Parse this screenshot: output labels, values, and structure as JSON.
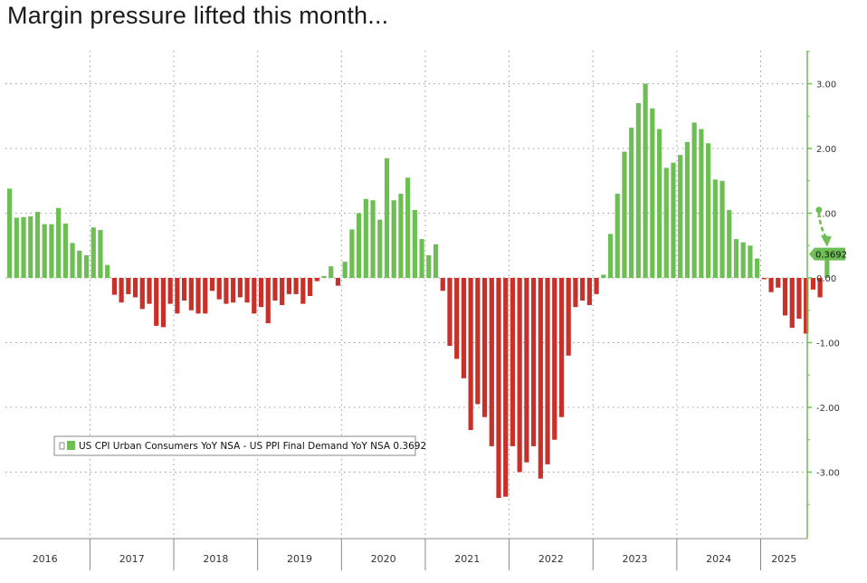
{
  "headline": "Margin pressure lifted this month...",
  "colors": {
    "positive": "#6dbf53",
    "negative": "#c8302a",
    "axis": "#6dbf53",
    "grid": "#9a9a9a",
    "annotation": "#6dbf53"
  },
  "chart_data": {
    "type": "bar",
    "title": "",
    "xlabel": "",
    "ylabel": "",
    "ylim": [
      -4.0,
      3.5
    ],
    "y_ticks": [
      3.0,
      2.0,
      1.0,
      0.0,
      -1.0,
      -2.0,
      -3.0
    ],
    "y_tick_labels": [
      "3.00",
      "2.00",
      "1.00",
      "0.00",
      "-1.00",
      "-2.00",
      "-3.00"
    ],
    "y_axis_side": "right",
    "grid": true,
    "legend": {
      "position": "bottom-left",
      "entries": [
        "US CPI Urban Consumers YoY NSA - US PPI Final Demand YoY NSA 0.3692"
      ]
    },
    "year_labels": [
      "2016",
      "2017",
      "2018",
      "2019",
      "2020",
      "2021",
      "2022",
      "2023",
      "2024",
      "2025"
    ],
    "last_value_label": "0.3692",
    "annotation": "Dashed arrow pointing from prior month value down to the latest value",
    "series": [
      {
        "name": "US CPI Urban Consumers YoY NSA - US PPI Final Demand YoY NSA",
        "start": "2016-01",
        "frequency": "monthly",
        "values": [
          1.38,
          0.93,
          0.94,
          0.95,
          1.02,
          0.83,
          0.83,
          1.08,
          0.84,
          0.54,
          0.42,
          0.35,
          0.78,
          0.74,
          0.2,
          -0.26,
          -0.38,
          -0.25,
          -0.3,
          -0.48,
          -0.4,
          -0.74,
          -0.76,
          -0.4,
          -0.55,
          -0.35,
          -0.5,
          -0.55,
          -0.55,
          -0.2,
          -0.33,
          -0.4,
          -0.38,
          -0.3,
          -0.38,
          -0.55,
          -0.45,
          -0.7,
          -0.35,
          -0.42,
          -0.25,
          -0.25,
          -0.4,
          -0.28,
          -0.05,
          0.03,
          0.18,
          -0.12,
          0.25,
          0.75,
          1.0,
          1.22,
          1.2,
          0.9,
          1.85,
          1.2,
          1.3,
          1.55,
          1.05,
          0.6,
          0.35,
          0.52,
          -0.2,
          -1.05,
          -1.25,
          -1.55,
          -2.35,
          -1.95,
          -2.15,
          -2.6,
          -3.4,
          -3.38,
          -2.6,
          -3.0,
          -2.85,
          -2.6,
          -3.1,
          -2.88,
          -2.5,
          -2.15,
          -1.2,
          -0.45,
          -0.35,
          -0.42,
          -0.25,
          0.05,
          0.68,
          1.3,
          1.95,
          2.32,
          2.7,
          3.0,
          2.62,
          2.3,
          1.7,
          1.78,
          1.9,
          2.1,
          2.4,
          2.3,
          2.08,
          1.52,
          1.5,
          1.05,
          0.6,
          0.55,
          0.5,
          0.3,
          -0.02,
          -0.22,
          -0.15,
          -0.58,
          -0.77,
          -0.63,
          -0.86,
          -0.18,
          -0.3,
          0.3692
        ]
      }
    ]
  }
}
